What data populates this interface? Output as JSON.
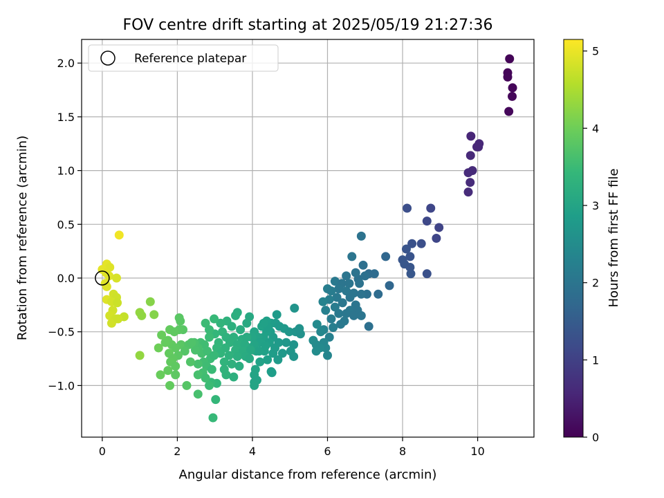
{
  "chart_data": {
    "type": "scatter",
    "title": "FOV centre drift starting at 2025/05/19 21:27:36",
    "xlabel": "Angular distance from reference (arcmin)",
    "ylabel": "Rotation from reference (arcmin)",
    "xlim": [
      -0.55,
      11.5
    ],
    "ylim": [
      -1.48,
      2.22
    ],
    "xticks": [
      0,
      2,
      4,
      6,
      8,
      10
    ],
    "yticks": [
      -1.0,
      -0.5,
      0.0,
      0.5,
      1.0,
      1.5,
      2.0
    ],
    "ytick_labels": [
      "−1.0",
      "−0.5",
      "0.0",
      "0.5",
      "1.0",
      "1.5",
      "2.0"
    ],
    "grid": true,
    "legend": {
      "position": "top-left",
      "label": "Reference platepar"
    },
    "reference_point": {
      "x": 0.0,
      "y": 0.0
    },
    "colorbar": {
      "label": "Hours from first FF file",
      "range": [
        0,
        5.15
      ],
      "ticks": [
        0,
        1,
        2,
        3,
        4,
        5
      ],
      "colormap": "viridis"
    },
    "colormap_stops": [
      "#440154",
      "#482878",
      "#3e4989",
      "#31688e",
      "#26828e",
      "#1f9e89",
      "#35b779",
      "#6ece58",
      "#b5de2b",
      "#fde725"
    ],
    "points": [
      [
        10.85,
        2.04,
        0.05
      ],
      [
        10.8,
        1.91,
        0.06
      ],
      [
        10.8,
        1.87,
        0.07
      ],
      [
        10.93,
        1.77,
        0.08
      ],
      [
        10.92,
        1.69,
        0.09
      ],
      [
        10.83,
        1.55,
        0.1
      ],
      [
        9.82,
        1.32,
        0.55
      ],
      [
        10.04,
        1.25,
        0.57
      ],
      [
        9.98,
        1.22,
        0.58
      ],
      [
        10.02,
        1.22,
        0.58
      ],
      [
        9.81,
        1.14,
        0.6
      ],
      [
        9.86,
        1.0,
        0.62
      ],
      [
        9.75,
        0.98,
        0.63
      ],
      [
        9.8,
        0.89,
        0.64
      ],
      [
        9.75,
        0.8,
        0.65
      ],
      [
        8.12,
        0.65,
        1.25
      ],
      [
        8.75,
        0.65,
        1.1
      ],
      [
        8.65,
        0.53,
        1.12
      ],
      [
        8.97,
        0.47,
        1.05
      ],
      [
        8.9,
        0.37,
        1.1
      ],
      [
        8.25,
        0.32,
        1.3
      ],
      [
        8.5,
        0.32,
        1.25
      ],
      [
        8.1,
        0.27,
        1.35
      ],
      [
        8.2,
        0.2,
        1.35
      ],
      [
        8.0,
        0.17,
        1.38
      ],
      [
        8.05,
        0.13,
        1.4
      ],
      [
        8.2,
        0.1,
        1.38
      ],
      [
        8.22,
        0.04,
        1.4
      ],
      [
        8.65,
        0.04,
        1.3
      ],
      [
        6.9,
        0.39,
        1.95
      ],
      [
        6.65,
        0.2,
        2.0
      ],
      [
        7.55,
        0.2,
        1.7
      ],
      [
        6.95,
        0.12,
        1.9
      ],
      [
        7.25,
        0.04,
        1.8
      ],
      [
        7.1,
        0.04,
        1.8
      ],
      [
        6.5,
        0.02,
        2.0
      ],
      [
        6.82,
        -0.01,
        1.9
      ],
      [
        7.0,
        0.02,
        1.9
      ],
      [
        6.2,
        -0.03,
        2.1
      ],
      [
        6.75,
        0.05,
        1.95
      ],
      [
        6.38,
        -0.05,
        2.0
      ],
      [
        6.58,
        -0.05,
        2.0
      ],
      [
        6.85,
        -0.05,
        1.95
      ],
      [
        7.65,
        -0.07,
        1.7
      ],
      [
        6.3,
        -0.1,
        2.05
      ],
      [
        6.0,
        -0.1,
        2.2
      ],
      [
        6.1,
        -0.12,
        2.15
      ],
      [
        6.5,
        -0.12,
        2.05
      ],
      [
        6.7,
        -0.14,
        2.0
      ],
      [
        7.05,
        -0.15,
        1.9
      ],
      [
        7.35,
        -0.15,
        1.8
      ],
      [
        6.9,
        -0.15,
        1.95
      ],
      [
        6.6,
        -0.18,
        2.0
      ],
      [
        6.25,
        -0.18,
        2.1
      ],
      [
        6.05,
        -0.2,
        2.2
      ],
      [
        5.88,
        -0.22,
        2.3
      ],
      [
        6.4,
        -0.23,
        2.05
      ],
      [
        6.75,
        -0.25,
        2.0
      ],
      [
        6.2,
        -0.27,
        2.15
      ],
      [
        5.95,
        -0.3,
        2.25
      ],
      [
        6.6,
        -0.3,
        2.05
      ],
      [
        6.8,
        -0.3,
        2.0
      ],
      [
        6.3,
        -0.33,
        2.1
      ],
      [
        6.5,
        -0.33,
        2.05
      ],
      [
        6.7,
        -0.35,
        2.0
      ],
      [
        6.9,
        -0.35,
        2.0
      ],
      [
        6.1,
        -0.38,
        2.15
      ],
      [
        6.45,
        -0.4,
        2.1
      ],
      [
        6.35,
        -0.43,
        2.1
      ],
      [
        7.1,
        -0.45,
        1.9
      ],
      [
        6.15,
        -0.46,
        2.2
      ],
      [
        5.9,
        -0.48,
        2.3
      ],
      [
        6.05,
        -0.55,
        2.25
      ],
      [
        5.72,
        -0.43,
        2.45
      ],
      [
        5.82,
        -0.5,
        2.4
      ],
      [
        5.62,
        -0.58,
        2.5
      ],
      [
        5.7,
        -0.62,
        2.48
      ],
      [
        5.9,
        -0.6,
        2.4
      ],
      [
        5.95,
        -0.65,
        2.4
      ],
      [
        5.8,
        -0.65,
        2.45
      ],
      [
        5.7,
        -0.68,
        2.5
      ],
      [
        6.0,
        -0.72,
        2.35
      ],
      [
        5.12,
        -0.28,
        2.65
      ],
      [
        4.65,
        -0.34,
        2.8
      ],
      [
        4.62,
        -0.42,
        2.8
      ],
      [
        4.5,
        -0.42,
        2.85
      ],
      [
        4.38,
        -0.4,
        2.9
      ],
      [
        4.25,
        -0.45,
        2.95
      ],
      [
        4.48,
        -0.5,
        2.85
      ],
      [
        4.55,
        -0.55,
        2.82
      ],
      [
        4.72,
        -0.45,
        2.78
      ],
      [
        4.85,
        -0.47,
        2.75
      ],
      [
        4.98,
        -0.5,
        2.7
      ],
      [
        5.15,
        -0.5,
        2.65
      ],
      [
        5.28,
        -0.52,
        2.6
      ],
      [
        5.25,
        -0.47,
        2.62
      ],
      [
        4.38,
        -0.5,
        2.9
      ],
      [
        4.3,
        -0.55,
        2.92
      ],
      [
        4.15,
        -0.55,
        2.98
      ],
      [
        4.05,
        -0.5,
        3.0
      ],
      [
        3.98,
        -0.55,
        3.02
      ],
      [
        4.2,
        -0.6,
        2.95
      ],
      [
        4.45,
        -0.6,
        2.88
      ],
      [
        4.7,
        -0.6,
        2.78
      ],
      [
        4.9,
        -0.6,
        2.72
      ],
      [
        5.1,
        -0.62,
        2.66
      ],
      [
        4.05,
        -0.62,
        3.0
      ],
      [
        3.92,
        -0.65,
        3.05
      ],
      [
        4.1,
        -0.68,
        3.0
      ],
      [
        4.32,
        -0.68,
        2.93
      ],
      [
        4.55,
        -0.7,
        2.85
      ],
      [
        4.8,
        -0.7,
        2.75
      ],
      [
        5.02,
        -0.68,
        2.7
      ],
      [
        5.1,
        -0.73,
        2.68
      ],
      [
        4.68,
        -0.76,
        2.8
      ],
      [
        4.4,
        -0.76,
        2.9
      ],
      [
        4.2,
        -0.78,
        2.95
      ],
      [
        4.08,
        -0.85,
        3.0
      ],
      [
        4.5,
        -0.87,
        2.87
      ],
      [
        4.52,
        -0.88,
        2.86
      ],
      [
        4.05,
        -0.9,
        3.0
      ],
      [
        4.05,
        -0.97,
        3.0
      ],
      [
        4.12,
        -0.95,
        2.98
      ],
      [
        4.05,
        -1.0,
        3.0
      ],
      [
        4.18,
        -0.68,
        2.96
      ],
      [
        4.35,
        -0.63,
        2.92
      ],
      [
        4.6,
        -0.65,
        2.82
      ],
      [
        4.42,
        -0.46,
        2.88
      ],
      [
        4.3,
        -0.42,
        2.92
      ],
      [
        3.92,
        -0.36,
        3.1
      ],
      [
        3.6,
        -0.32,
        3.2
      ],
      [
        3.55,
        -0.35,
        3.22
      ],
      [
        3.32,
        -0.4,
        3.3
      ],
      [
        3.15,
        -0.42,
        3.35
      ],
      [
        3.45,
        -0.45,
        3.25
      ],
      [
        3.85,
        -0.42,
        3.12
      ],
      [
        3.68,
        -0.48,
        3.18
      ],
      [
        3.2,
        -0.5,
        3.35
      ],
      [
        3.0,
        -0.52,
        3.4
      ],
      [
        3.3,
        -0.55,
        3.3
      ],
      [
        3.5,
        -0.55,
        3.25
      ],
      [
        3.72,
        -0.57,
        3.18
      ],
      [
        3.85,
        -0.55,
        3.14
      ],
      [
        3.1,
        -0.6,
        3.38
      ],
      [
        3.4,
        -0.6,
        3.28
      ],
      [
        3.6,
        -0.62,
        3.22
      ],
      [
        3.8,
        -0.62,
        3.15
      ],
      [
        3.05,
        -0.65,
        3.4
      ],
      [
        3.28,
        -0.65,
        3.32
      ],
      [
        3.55,
        -0.67,
        3.24
      ],
      [
        3.75,
        -0.68,
        3.18
      ],
      [
        3.95,
        -0.67,
        3.1
      ],
      [
        3.15,
        -0.7,
        3.36
      ],
      [
        3.38,
        -0.72,
        3.3
      ],
      [
        3.6,
        -0.73,
        3.22
      ],
      [
        3.82,
        -0.73,
        3.15
      ],
      [
        3.92,
        -0.75,
        3.12
      ],
      [
        3.25,
        -0.78,
        3.34
      ],
      [
        3.45,
        -0.8,
        3.28
      ],
      [
        3.65,
        -0.82,
        3.2
      ],
      [
        3.3,
        -0.9,
        3.32
      ],
      [
        3.5,
        -0.92,
        3.26
      ],
      [
        3.25,
        -0.85,
        3.33
      ],
      [
        3.05,
        -0.98,
        3.4
      ],
      [
        2.9,
        -0.97,
        3.45
      ],
      [
        2.98,
        -0.38,
        3.45
      ],
      [
        2.75,
        -0.42,
        3.5
      ],
      [
        2.85,
        -0.48,
        3.48
      ],
      [
        2.62,
        -0.6,
        3.58
      ],
      [
        2.72,
        -0.62,
        3.55
      ],
      [
        2.55,
        -0.65,
        3.62
      ],
      [
        2.85,
        -0.55,
        3.5
      ],
      [
        2.65,
        -0.7,
        3.6
      ],
      [
        2.8,
        -0.68,
        3.55
      ],
      [
        2.88,
        -0.75,
        3.5
      ],
      [
        2.98,
        -0.72,
        3.46
      ],
      [
        2.7,
        -0.78,
        3.56
      ],
      [
        2.55,
        -0.8,
        3.62
      ],
      [
        2.78,
        -0.82,
        3.54
      ],
      [
        2.92,
        -0.85,
        3.48
      ],
      [
        2.68,
        -0.88,
        3.58
      ],
      [
        2.55,
        -0.9,
        3.62
      ],
      [
        2.75,
        -0.93,
        3.55
      ],
      [
        2.55,
        -1.08,
        3.62
      ],
      [
        2.85,
        -1.0,
        3.5
      ],
      [
        3.02,
        -1.13,
        3.42
      ],
      [
        2.95,
        -1.3,
        3.45
      ],
      [
        2.48,
        -0.67,
        3.65
      ],
      [
        2.45,
        -0.6,
        3.65
      ],
      [
        2.05,
        -0.37,
        3.8
      ],
      [
        2.08,
        -0.4,
        3.8
      ],
      [
        2.15,
        -0.48,
        3.78
      ],
      [
        2.05,
        -0.48,
        3.82
      ],
      [
        1.8,
        -0.48,
        3.9
      ],
      [
        1.92,
        -0.5,
        3.86
      ],
      [
        1.58,
        -0.53,
        3.95
      ],
      [
        1.75,
        -0.58,
        3.9
      ],
      [
        1.85,
        -0.62,
        3.88
      ],
      [
        1.68,
        -0.6,
        3.92
      ],
      [
        2.1,
        -0.62,
        3.8
      ],
      [
        2.3,
        -0.62,
        3.72
      ],
      [
        2.38,
        -0.6,
        3.7
      ],
      [
        1.5,
        -0.65,
        4.0
      ],
      [
        1.95,
        -0.65,
        3.85
      ],
      [
        2.2,
        -0.68,
        3.75
      ],
      [
        1.78,
        -0.7,
        3.9
      ],
      [
        2.02,
        -0.72,
        3.82
      ],
      [
        1.88,
        -0.75,
        3.86
      ],
      [
        1.82,
        -0.78,
        3.88
      ],
      [
        2.35,
        -0.78,
        3.72
      ],
      [
        1.95,
        -0.82,
        3.85
      ],
      [
        1.75,
        -0.86,
        3.9
      ],
      [
        1.55,
        -0.9,
        3.95
      ],
      [
        1.95,
        -0.9,
        3.84
      ],
      [
        1.8,
        -1.0,
        3.9
      ],
      [
        2.25,
        -1.0,
        3.76
      ],
      [
        1.28,
        -0.22,
        4.2
      ],
      [
        1.0,
        -0.32,
        4.3
      ],
      [
        1.05,
        -0.35,
        4.28
      ],
      [
        1.38,
        -0.34,
        4.18
      ],
      [
        1.0,
        -0.72,
        4.3
      ],
      [
        0.45,
        0.4,
        5.05
      ],
      [
        0.12,
        0.13,
        4.95
      ],
      [
        0.2,
        0.1,
        4.9
      ],
      [
        0.0,
        0.08,
        4.95
      ],
      [
        0.1,
        0.05,
        4.92
      ],
      [
        0.18,
        0.02,
        4.9
      ],
      [
        0.38,
        0.0,
        4.85
      ],
      [
        0.08,
        -0.05,
        4.92
      ],
      [
        0.12,
        -0.08,
        4.9
      ],
      [
        0.3,
        -0.15,
        4.8
      ],
      [
        0.38,
        -0.18,
        4.78
      ],
      [
        0.12,
        -0.2,
        4.9
      ],
      [
        0.25,
        -0.22,
        4.82
      ],
      [
        0.4,
        -0.23,
        4.75
      ],
      [
        0.28,
        -0.3,
        4.8
      ],
      [
        0.2,
        -0.35,
        4.82
      ],
      [
        0.35,
        -0.38,
        4.78
      ],
      [
        0.58,
        -0.36,
        4.7
      ],
      [
        0.25,
        -0.42,
        4.8
      ],
      [
        0.42,
        -0.38,
        4.76
      ]
    ]
  }
}
